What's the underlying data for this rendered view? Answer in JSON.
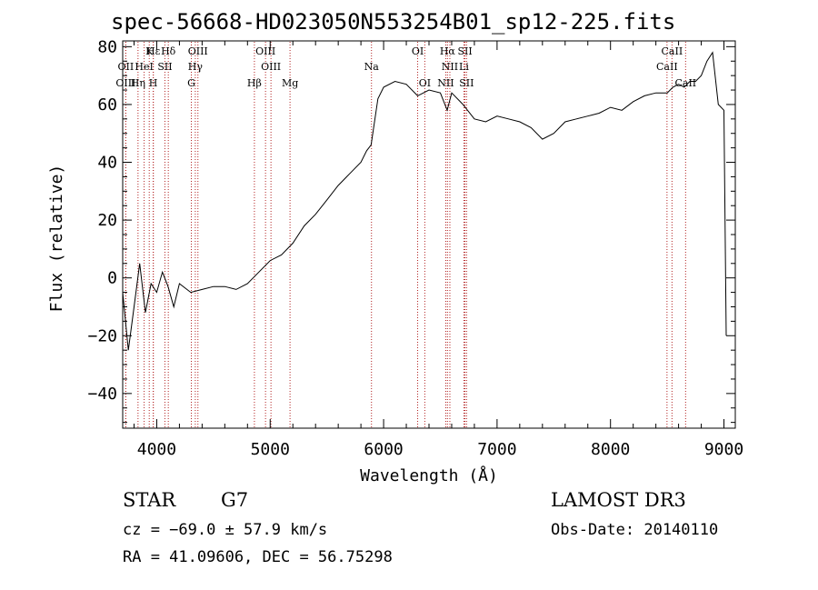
{
  "header": {
    "title": "spec-56668-HD023050N553254B01_sp12-225.fits"
  },
  "info": {
    "object_type": "STAR",
    "subclass": "G7",
    "survey": "LAMOST DR3",
    "cz": "cz = −69.0 ± 57.9 km/s",
    "obs_date": "Obs-Date: 20140110",
    "radec": "RA =  41.09606, DEC =  56.75298"
  },
  "chart_data": {
    "type": "line",
    "title": "spec-56668-HD023050N553254B01_sp12-225.fits",
    "xlabel": "Wavelength (Å)",
    "ylabel": "Flux (relative)",
    "xlim": [
      3700,
      9100
    ],
    "ylim": [
      -52,
      82
    ],
    "x_ticks": [
      4000,
      5000,
      6000,
      7000,
      8000,
      9000
    ],
    "y_ticks": [
      -40,
      -20,
      0,
      20,
      40,
      60,
      80
    ],
    "y_tick_labels": [
      "−40",
      "−20",
      "0",
      "20",
      "40",
      "60",
      "80"
    ],
    "line_color": "#000000",
    "marker_color": "#b22222",
    "series": [
      {
        "name": "flux",
        "x": [
          3700,
          3750,
          3800,
          3850,
          3900,
          3950,
          4000,
          4050,
          4100,
          4150,
          4200,
          4300,
          4400,
          4500,
          4600,
          4700,
          4800,
          4900,
          5000,
          5100,
          5200,
          5300,
          5400,
          5500,
          5600,
          5700,
          5800,
          5850,
          5890,
          5950,
          6000,
          6100,
          6200,
          6300,
          6400,
          6500,
          6560,
          6600,
          6700,
          6800,
          6900,
          7000,
          7100,
          7200,
          7300,
          7400,
          7500,
          7600,
          7700,
          7800,
          7900,
          8000,
          8100,
          8200,
          8300,
          8400,
          8500,
          8550,
          8600,
          8650,
          8700,
          8750,
          8800,
          8850,
          8900,
          8950,
          9000,
          9020
        ],
        "y": [
          -5,
          -25,
          -10,
          5,
          -12,
          -2,
          -5,
          2,
          -3,
          -10,
          -2,
          -5,
          -4,
          -3,
          -3,
          -4,
          -2,
          2,
          6,
          8,
          12,
          18,
          22,
          27,
          32,
          36,
          40,
          44,
          46,
          62,
          66,
          68,
          67,
          63,
          65,
          64,
          58,
          64,
          60,
          55,
          54,
          56,
          55,
          54,
          52,
          48,
          50,
          54,
          55,
          56,
          57,
          59,
          58,
          61,
          63,
          64,
          64,
          66,
          67,
          66,
          68,
          68,
          70,
          75,
          78,
          60,
          58,
          -20
        ]
      }
    ],
    "line_markers": [
      {
        "label": "Hε",
        "x": 3970,
        "row": 1
      },
      {
        "label": "K",
        "x": 3934,
        "row": 1
      },
      {
        "label": "Hδ",
        "x": 4102,
        "row": 1
      },
      {
        "label": "OIII",
        "x": 4363,
        "row": 1
      },
      {
        "label": "OIII",
        "x": 4959,
        "row": 1
      },
      {
        "label": "OI",
        "x": 6300,
        "row": 1
      },
      {
        "label": "Hα",
        "x": 6563,
        "row": 1
      },
      {
        "label": "SII",
        "x": 6717,
        "row": 1
      },
      {
        "label": "CaII",
        "x": 8542,
        "row": 1
      },
      {
        "label": "OII",
        "x": 3727,
        "row": 2
      },
      {
        "label": "HeI",
        "x": 3889,
        "row": 2
      },
      {
        "label": "SII",
        "x": 4072,
        "row": 2
      },
      {
        "label": "Hγ",
        "x": 4340,
        "row": 2
      },
      {
        "label": "OIII",
        "x": 5007,
        "row": 2
      },
      {
        "label": "Na",
        "x": 5893,
        "row": 2
      },
      {
        "label": "NII",
        "x": 6584,
        "row": 2
      },
      {
        "label": "Li",
        "x": 6708,
        "row": 2
      },
      {
        "label": "CaII",
        "x": 8498,
        "row": 2
      },
      {
        "label": "OIII",
        "x": 3727,
        "row": 3
      },
      {
        "label": "Hη",
        "x": 3835,
        "row": 3
      },
      {
        "label": "H",
        "x": 3969,
        "row": 3
      },
      {
        "label": "G",
        "x": 4305,
        "row": 3
      },
      {
        "label": "Hβ",
        "x": 4861,
        "row": 3
      },
      {
        "label": "Mg",
        "x": 5175,
        "row": 3
      },
      {
        "label": "OI",
        "x": 6363,
        "row": 3
      },
      {
        "label": "NII",
        "x": 6548,
        "row": 3
      },
      {
        "label": "SII",
        "x": 6731,
        "row": 3
      },
      {
        "label": "CaII",
        "x": 8662,
        "row": 3
      }
    ]
  }
}
